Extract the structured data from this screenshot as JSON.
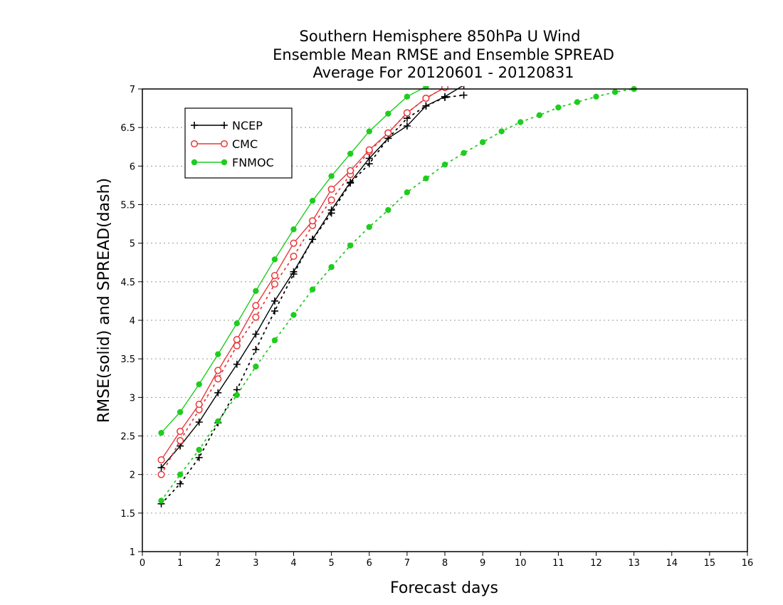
{
  "chart_data": {
    "type": "line",
    "title_lines": [
      "Southern Hemisphere 850hPa U Wind",
      "Ensemble Mean RMSE and Ensemble SPREAD",
      "Average For 20120601 - 20120831"
    ],
    "xlabel": "Forecast days",
    "ylabel": "RMSE(solid) and SPREAD(dash)",
    "xlim": [
      0,
      16
    ],
    "ylim": [
      1,
      7
    ],
    "xticks": [
      "0",
      "1",
      "2",
      "3",
      "4",
      "5",
      "6",
      "7",
      "8",
      "9",
      "10",
      "11",
      "12",
      "13",
      "14",
      "15",
      "16"
    ],
    "yticks": [
      "1",
      "1.5",
      "2",
      "2.5",
      "3",
      "3.5",
      "4",
      "4.5",
      "5",
      "5.5",
      "6",
      "6.5",
      "7"
    ],
    "grid": "horizontal dotted",
    "legend_position": "top-left",
    "series": [
      {
        "name": "NCEP",
        "color": "#000000",
        "marker": "plus",
        "rmse": {
          "x": [
            0.5,
            1,
            1.5,
            2,
            2.5,
            3,
            3.5,
            4,
            4.5,
            5,
            5.5,
            6,
            6.5,
            7,
            7.5,
            8,
            8.5
          ],
          "y": [
            2.09,
            2.37,
            2.68,
            3.06,
            3.43,
            3.82,
            4.25,
            4.63,
            5.05,
            5.43,
            5.79,
            6.1,
            6.36,
            6.52,
            6.78,
            6.9,
            7.05
          ]
        },
        "spread": {
          "x": [
            0.5,
            1,
            1.5,
            2,
            2.5,
            3,
            3.5,
            4,
            4.5,
            5,
            5.5,
            6,
            6.5,
            7,
            7.5,
            8,
            8.5
          ],
          "y": [
            1.62,
            1.88,
            2.22,
            2.67,
            3.1,
            3.62,
            4.12,
            4.6,
            5.05,
            5.39,
            5.78,
            6.03,
            6.36,
            6.62,
            6.78,
            6.89,
            6.92
          ]
        }
      },
      {
        "name": "CMC",
        "color": "#e8383b",
        "marker": "open-circle",
        "rmse": {
          "x": [
            0.5,
            1,
            1.5,
            2,
            2.5,
            3,
            3.5,
            4,
            4.5,
            5,
            5.5,
            6,
            6.5,
            7,
            7.5,
            8
          ],
          "y": [
            2.19,
            2.56,
            2.91,
            3.35,
            3.75,
            4.19,
            4.58,
            5.0,
            5.29,
            5.7,
            5.94,
            6.21,
            6.43,
            6.69,
            6.88,
            7.02
          ]
        },
        "spread": {
          "x": [
            0.5,
            1,
            1.5,
            2,
            2.5,
            3,
            3.5,
            4,
            4.5,
            5,
            5.5,
            6,
            6.5,
            7,
            7.5,
            8
          ],
          "y": [
            2.0,
            2.44,
            2.84,
            3.24,
            3.67,
            4.04,
            4.47,
            4.83,
            5.23,
            5.56,
            5.89,
            6.19,
            6.43,
            6.69,
            6.88,
            7.02
          ]
        }
      },
      {
        "name": "FNMOC",
        "color": "#1fcc1f",
        "marker": "filled-circle",
        "rmse": {
          "x": [
            0.5,
            1,
            1.5,
            2,
            2.5,
            3,
            3.5,
            4,
            4.5,
            5,
            5.5,
            6,
            6.5,
            7,
            7.5
          ],
          "y": [
            2.54,
            2.81,
            3.17,
            3.56,
            3.96,
            4.38,
            4.79,
            5.18,
            5.55,
            5.87,
            6.16,
            6.45,
            6.68,
            6.9,
            7.03
          ]
        },
        "spread": {
          "x": [
            0.5,
            1,
            1.5,
            2,
            2.5,
            3,
            3.5,
            4,
            4.5,
            5,
            5.5,
            6,
            6.5,
            7,
            7.5,
            8,
            8.5,
            9,
            9.5,
            10,
            10.5,
            11,
            11.5,
            12,
            12.5,
            13
          ],
          "y": [
            1.66,
            2.0,
            2.32,
            2.69,
            3.03,
            3.4,
            3.74,
            4.07,
            4.4,
            4.69,
            4.97,
            5.21,
            5.43,
            5.66,
            5.84,
            6.02,
            6.17,
            6.31,
            6.45,
            6.57,
            6.66,
            6.76,
            6.83,
            6.9,
            6.96,
            7.0
          ]
        }
      }
    ]
  }
}
